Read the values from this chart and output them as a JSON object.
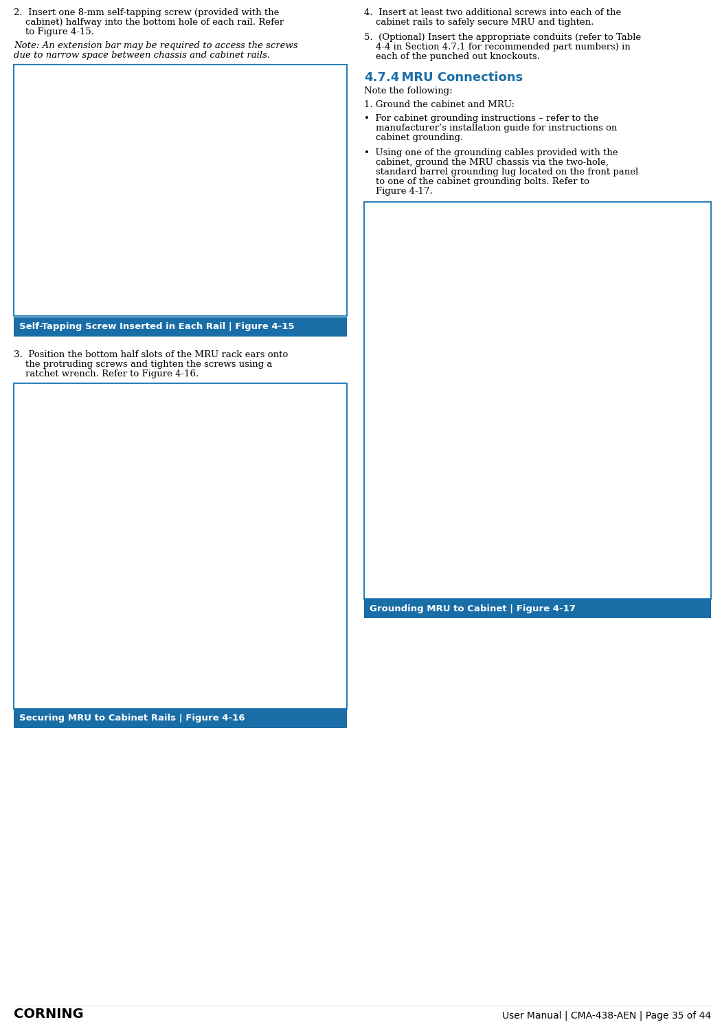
{
  "page_width": 10.51,
  "page_height": 15.04,
  "dpi": 100,
  "bg_color": "#ffffff",
  "caption_bg": "#1a6ea8",
  "caption_text_color": "#ffffff",
  "caption_font_size": 9.5,
  "body_font_size": 9.5,
  "note_font_size": 9.5,
  "section_title_color": "#1a6ea8",
  "section_title_size": 13,
  "image_border_color": "#2980b9",
  "footer_text_left": "CORNING",
  "footer_text_right": "User Manual | CMA-438-AEN | Page 35 of 44",
  "footer_font_size": 10,
  "left_col": {
    "para2_lines": [
      "2.  Insert one 8-mm self-tapping screw (provided with the",
      "    cabinet) halfway into the bottom hole of each rail. Refer",
      "    to Figure 4-15."
    ],
    "note_lines": [
      "Note: An extension bar may be required to access the screws",
      "due to narrow space between chassis and cabinet rails."
    ],
    "caption_fig15": "Self-Tapping Screw Inserted in Each Rail | Figure 4-15",
    "para3_lines": [
      "3.  Position the bottom half slots of the MRU rack ears onto",
      "    the protruding screws and tighten the screws using a",
      "    ratchet wrench. Refer to Figure 4-16."
    ],
    "caption_fig16": "Securing MRU to Cabinet Rails | Figure 4-16"
  },
  "right_col": {
    "para4_lines": [
      "4.  Insert at least two additional screws into each of the",
      "    cabinet rails to safely secure MRU and tighten."
    ],
    "para5_lines": [
      "5.  (Optional) Insert the appropriate conduits (refer to Table",
      "    4-4 in Section 4.7.1 for recommended part numbers) in",
      "    each of the punched out knockouts."
    ],
    "section_num": "4.7.4",
    "section_title": "  MRU Connections",
    "note_following": "Note the following:",
    "para1_lines": [
      "1. Ground the cabinet and MRU:"
    ],
    "bullet1_lines": [
      "•  For cabinet grounding instructions – refer to the",
      "    manufacturer’s installation guide for instructions on",
      "    cabinet grounding."
    ],
    "bullet2_lines": [
      "•  Using one of the grounding cables provided with the",
      "    cabinet, ground the MRU chassis via the two-hole,",
      "    standard barrel grounding lug located on the front panel",
      "    to one of the cabinet grounding bolts. Refer to",
      "    Figure 4-17."
    ],
    "caption_fig17": "Grounding MRU to Cabinet | Figure 4-17"
  }
}
